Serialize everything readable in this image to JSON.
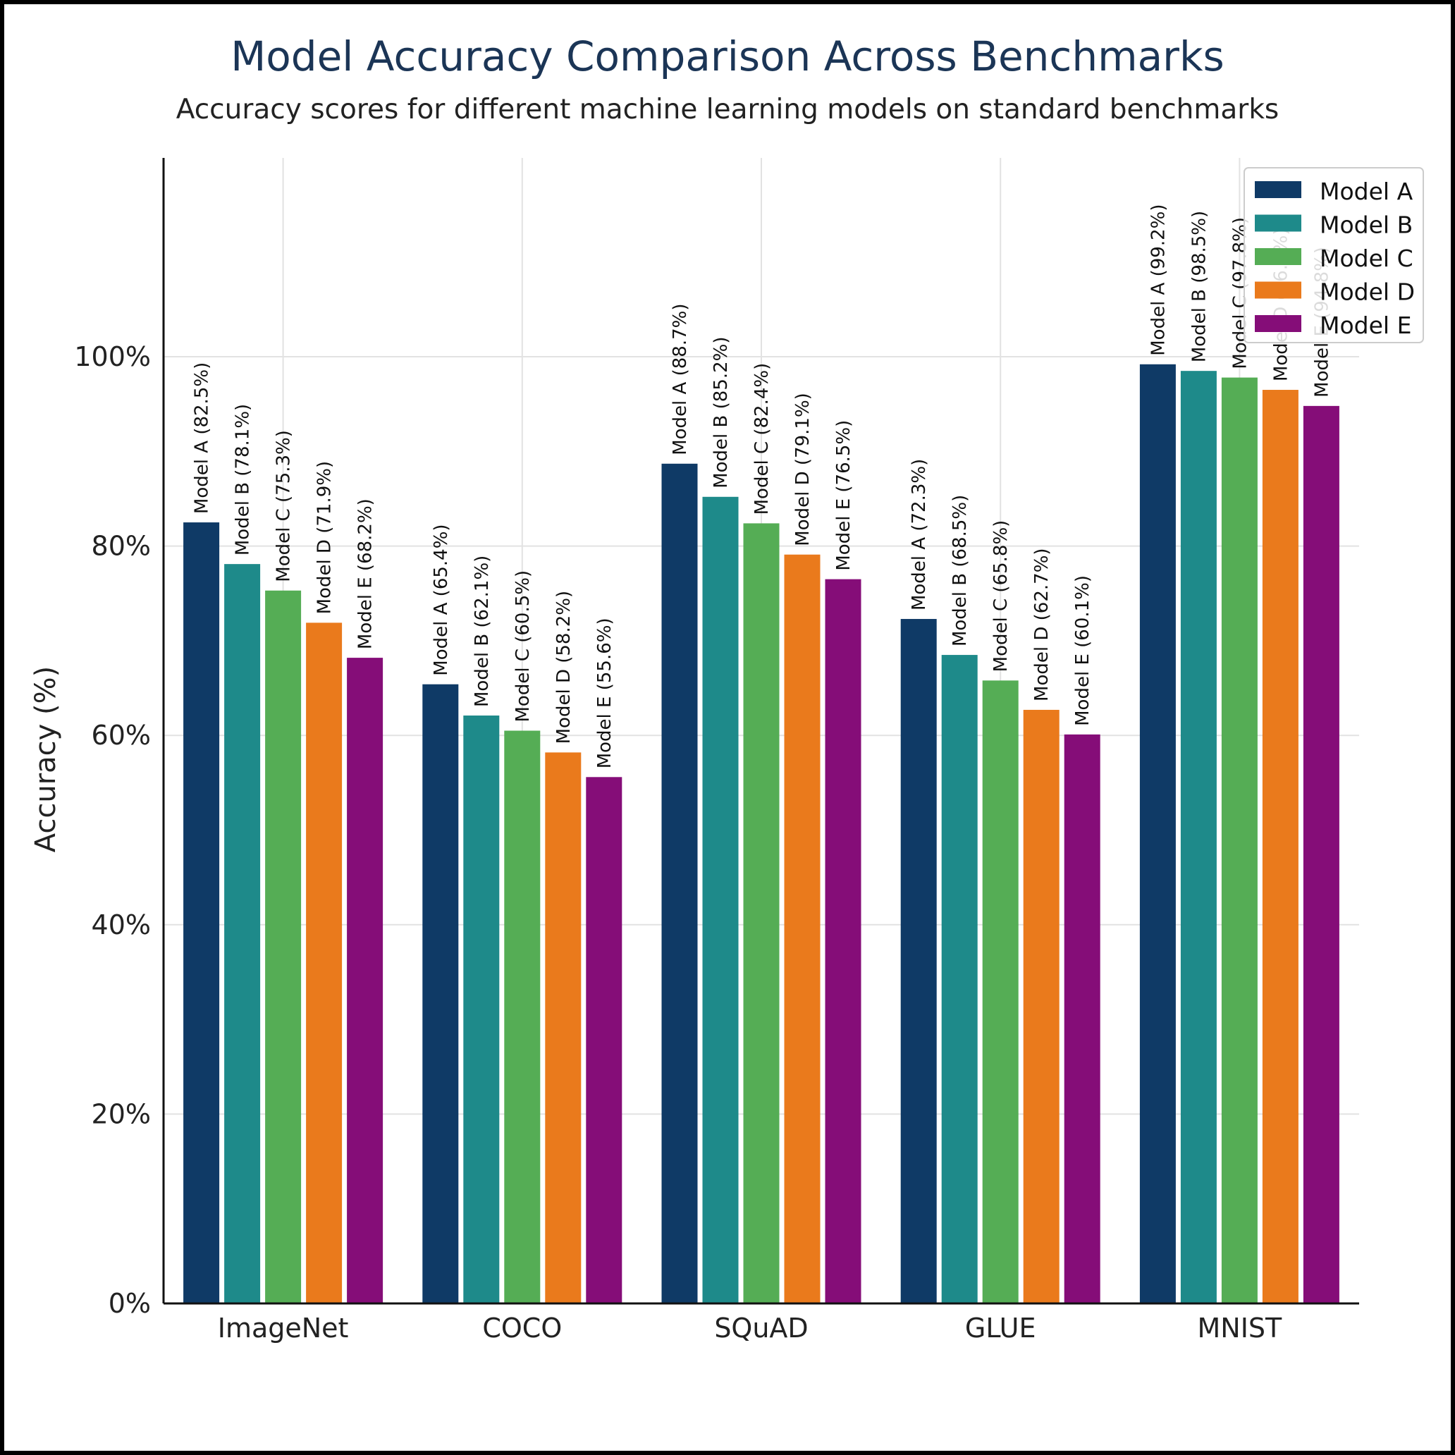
{
  "chart_data": {
    "type": "bar",
    "title": "Model Accuracy Comparison Across Benchmarks",
    "subtitle": "Accuracy scores for different machine learning models on standard benchmarks",
    "xlabel": "",
    "ylabel": "Accuracy (%)",
    "ylim": [
      0,
      121
    ],
    "yticks": [
      0,
      20,
      40,
      60,
      80,
      100
    ],
    "ytick_labels": [
      "0%",
      "20%",
      "40%",
      "60%",
      "80%",
      "100%"
    ],
    "grid": true,
    "legend_position": "top-right",
    "categories": [
      "ImageNet",
      "COCO",
      "SQuAD",
      "GLUE",
      "MNIST"
    ],
    "series": [
      {
        "name": "Model A",
        "color": "#0f3a66",
        "values": [
          82.5,
          65.4,
          88.7,
          72.3,
          99.2
        ]
      },
      {
        "name": "Model B",
        "color": "#1e8a8a",
        "values": [
          78.1,
          62.1,
          85.2,
          68.5,
          98.5
        ]
      },
      {
        "name": "Model C",
        "color": "#55ad55",
        "values": [
          75.3,
          60.5,
          82.4,
          65.8,
          97.8
        ]
      },
      {
        "name": "Model D",
        "color": "#ea7a1c",
        "values": [
          71.9,
          58.2,
          79.1,
          62.7,
          96.5
        ]
      },
      {
        "name": "Model E",
        "color": "#850d78",
        "values": [
          68.2,
          55.6,
          76.5,
          60.1,
          94.8
        ]
      }
    ]
  }
}
